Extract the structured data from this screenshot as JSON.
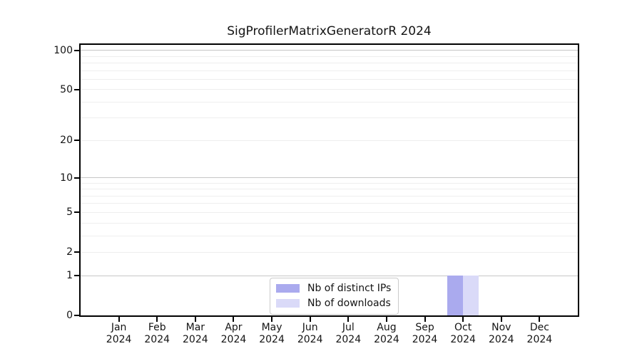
{
  "page": {
    "background_color": "#ffffff",
    "text_color": "#141414"
  },
  "chart_data": {
    "type": "bar",
    "title": "SigProfilerMatrixGeneratorR 2024",
    "categories": [
      "Jan",
      "Feb",
      "Mar",
      "Apr",
      "May",
      "Jun",
      "Jul",
      "Aug",
      "Sep",
      "Oct",
      "Nov",
      "Dec"
    ],
    "category_year": "2024",
    "series": [
      {
        "name": "Nb of distinct IPs",
        "color": "#aaaaee",
        "values": [
          0,
          0,
          0,
          0,
          0,
          0,
          0,
          0,
          0,
          1,
          0,
          0
        ]
      },
      {
        "name": "Nb of downloads",
        "color": "#dadaf8",
        "values": [
          0,
          0,
          0,
          0,
          0,
          0,
          0,
          0,
          0,
          1,
          0,
          0
        ]
      }
    ],
    "xlabel": "",
    "ylabel": "",
    "y_axis": {
      "scale": "log1p",
      "tick_values": [
        0,
        1,
        2,
        5,
        10,
        20,
        50,
        100
      ],
      "tick_labels": [
        "0",
        "1",
        "2",
        "5",
        "10",
        "20",
        "50",
        "100"
      ],
      "max": 110
    },
    "grid": {
      "enabled": true,
      "major_values": [
        1,
        10,
        100
      ],
      "minor_values": [
        2,
        3,
        4,
        5,
        6,
        7,
        8,
        9,
        20,
        30,
        40,
        50,
        60,
        70,
        80,
        90
      ],
      "major_color": "#c6c6c6",
      "minor_color": "#eeeeee"
    },
    "legend": {
      "position": "lower center",
      "border_color": "#cbcbcb",
      "background": "#ffffff"
    },
    "axis_color": "#000000",
    "bar_width_fraction": 0.405
  }
}
